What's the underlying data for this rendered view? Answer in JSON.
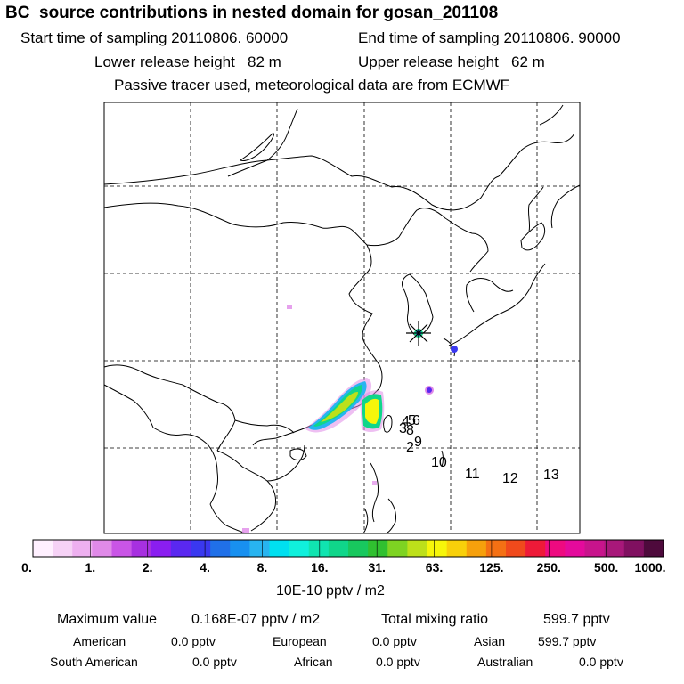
{
  "header": {
    "title": "BC  source contributions in nested domain for gosan_201108",
    "start_label": "Start time of sampling 20110806. 60000",
    "end_label": "End time of sampling 20110806. 90000",
    "lower_label": "Lower release height   82 m",
    "upper_label": "Upper release height   62 m",
    "tracer_note": "Passive tracer used, meteorological data are from ECMWF"
  },
  "map": {
    "trajectory_markers": [
      "4",
      "5",
      "6",
      "3",
      "8",
      "2",
      "9",
      "10",
      "11",
      "12",
      "13"
    ]
  },
  "colorbar": {
    "colors": [
      "#fff0ff",
      "#f6d2f6",
      "#eeb0f0",
      "#e08ae8",
      "#c955e6",
      "#a730e0",
      "#8a1ef0",
      "#5a28f0",
      "#3a38f0",
      "#2070e8",
      "#1890f0",
      "#28b4f0",
      "#00e0f0",
      "#10f0dc",
      "#10e4b0",
      "#10d68a",
      "#18c85e",
      "#30c030",
      "#7ed322",
      "#bde01a",
      "#f6f60a",
      "#f8d00a",
      "#f6a00c",
      "#f47014",
      "#f04a1c",
      "#ee1a38",
      "#ee0a80",
      "#e40a9c",
      "#c8148c",
      "#a8187a",
      "#801060",
      "#4e0a3c"
    ],
    "tick_labels": [
      "0.",
      "1.",
      "2.",
      "4.",
      "8.",
      "16.",
      "31.",
      "63.",
      "125.",
      "250.",
      "500.",
      "1000."
    ],
    "unit_label": "10E-10 pptv / m2"
  },
  "summary": {
    "max_label": "Maximum value",
    "max_value": "0.168E-07 pptv / m2",
    "total_label": "Total mixing ratio",
    "total_value": "599.7 pptv",
    "american_label": "American",
    "american_value": "0.0 pptv",
    "european_label": "European",
    "european_value": "0.0 pptv",
    "asian_label": "Asian",
    "asian_value": "599.7 pptv",
    "south_american_label": "South American",
    "south_american_value": "0.0 pptv",
    "african_label": "African",
    "african_value": "0.0 pptv",
    "australian_label": "Australian",
    "australian_value": "0.0 pptv"
  }
}
